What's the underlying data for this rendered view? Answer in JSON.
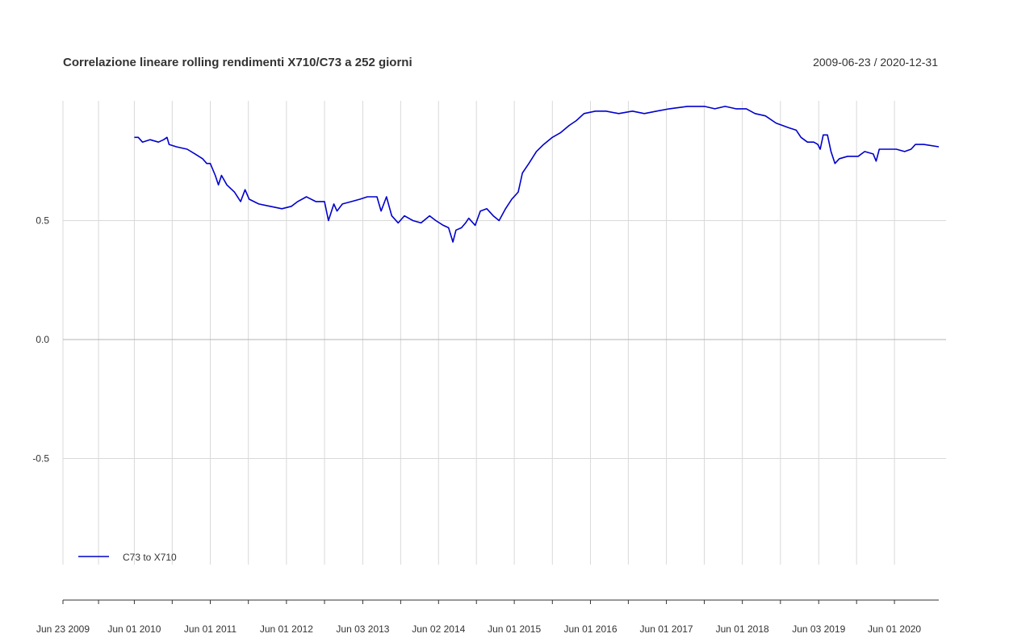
{
  "chart_data": {
    "type": "line",
    "title": "Correlazione lineare rolling rendimenti X710/C73 a 252 giorni",
    "date_range": "2009-06-23 / 2020-12-31",
    "xlabel": "",
    "ylabel": "",
    "xlim": [
      "2009-06-23",
      "2020-12-31"
    ],
    "ylim": [
      -1,
      1
    ],
    "y_ticks": [
      {
        "value": 0.5,
        "label": "0.5"
      },
      {
        "value": 0.0,
        "label": "0.0"
      },
      {
        "value": -0.5,
        "label": "-0.5"
      }
    ],
    "x_ticks": [
      {
        "date": "2009-06-23",
        "label": "Jun 23 2009"
      },
      {
        "date": "2010-06-01",
        "label": "Jun 01 2010"
      },
      {
        "date": "2011-06-01",
        "label": "Jun 01 2011"
      },
      {
        "date": "2012-06-01",
        "label": "Jun 01 2012"
      },
      {
        "date": "2013-06-03",
        "label": "Jun 03 2013"
      },
      {
        "date": "2014-06-02",
        "label": "Jun 02 2014"
      },
      {
        "date": "2015-06-01",
        "label": "Jun 01 2015"
      },
      {
        "date": "2016-06-01",
        "label": "Jun 01 2016"
      },
      {
        "date": "2017-06-01",
        "label": "Jun 01 2017"
      },
      {
        "date": "2018-06-01",
        "label": "Jun 01 2018"
      },
      {
        "date": "2019-06-03",
        "label": "Jun 03 2019"
      },
      {
        "date": "2020-06-01",
        "label": "Jun 01 2020"
      }
    ],
    "grid": true,
    "legend_position": "bottom-left",
    "series": [
      {
        "name": "C73 to X710",
        "color": "#0000cc",
        "points": [
          [
            "2010-06-01",
            0.85
          ],
          [
            "2010-06-20",
            0.85
          ],
          [
            "2010-07-10",
            0.83
          ],
          [
            "2010-08-15",
            0.84
          ],
          [
            "2010-09-25",
            0.83
          ],
          [
            "2010-10-20",
            0.84
          ],
          [
            "2010-11-05",
            0.85
          ],
          [
            "2010-11-15",
            0.82
          ],
          [
            "2010-12-20",
            0.81
          ],
          [
            "2011-02-10",
            0.8
          ],
          [
            "2011-03-20",
            0.78
          ],
          [
            "2011-04-25",
            0.76
          ],
          [
            "2011-05-15",
            0.74
          ],
          [
            "2011-06-01",
            0.74
          ],
          [
            "2011-06-25",
            0.69
          ],
          [
            "2011-07-10",
            0.65
          ],
          [
            "2011-07-25",
            0.69
          ],
          [
            "2011-08-20",
            0.65
          ],
          [
            "2011-09-25",
            0.62
          ],
          [
            "2011-10-25",
            0.58
          ],
          [
            "2011-11-15",
            0.63
          ],
          [
            "2011-12-05",
            0.59
          ],
          [
            "2012-01-20",
            0.57
          ],
          [
            "2012-03-15",
            0.56
          ],
          [
            "2012-05-10",
            0.55
          ],
          [
            "2012-06-25",
            0.56
          ],
          [
            "2012-07-25",
            0.58
          ],
          [
            "2012-09-05",
            0.6
          ],
          [
            "2012-10-20",
            0.58
          ],
          [
            "2012-12-01",
            0.58
          ],
          [
            "2012-12-20",
            0.5
          ],
          [
            "2013-01-15",
            0.57
          ],
          [
            "2013-01-30",
            0.54
          ],
          [
            "2013-02-25",
            0.57
          ],
          [
            "2013-04-10",
            0.58
          ],
          [
            "2013-05-20",
            0.59
          ],
          [
            "2013-06-25",
            0.6
          ],
          [
            "2013-08-10",
            0.6
          ],
          [
            "2013-08-30",
            0.54
          ],
          [
            "2013-09-25",
            0.6
          ],
          [
            "2013-10-20",
            0.52
          ],
          [
            "2013-11-20",
            0.49
          ],
          [
            "2013-12-20",
            0.52
          ],
          [
            "2014-01-30",
            0.5
          ],
          [
            "2014-03-10",
            0.49
          ],
          [
            "2014-04-20",
            0.52
          ],
          [
            "2014-05-20",
            0.5
          ],
          [
            "2014-06-25",
            0.48
          ],
          [
            "2014-07-20",
            0.47
          ],
          [
            "2014-08-10",
            0.41
          ],
          [
            "2014-08-25",
            0.46
          ],
          [
            "2014-09-20",
            0.47
          ],
          [
            "2014-10-10",
            0.49
          ],
          [
            "2014-10-25",
            0.51
          ],
          [
            "2014-11-25",
            0.48
          ],
          [
            "2014-12-20",
            0.54
          ],
          [
            "2015-01-20",
            0.55
          ],
          [
            "2015-02-20",
            0.52
          ],
          [
            "2015-03-20",
            0.5
          ],
          [
            "2015-04-20",
            0.55
          ],
          [
            "2015-05-20",
            0.59
          ],
          [
            "2015-06-20",
            0.62
          ],
          [
            "2015-07-10",
            0.7
          ],
          [
            "2015-08-10",
            0.74
          ],
          [
            "2015-09-15",
            0.79
          ],
          [
            "2015-10-20",
            0.82
          ],
          [
            "2015-12-01",
            0.85
          ],
          [
            "2016-01-10",
            0.87
          ],
          [
            "2016-02-20",
            0.9
          ],
          [
            "2016-03-25",
            0.92
          ],
          [
            "2016-05-01",
            0.95
          ],
          [
            "2016-06-25",
            0.96
          ],
          [
            "2016-08-15",
            0.96
          ],
          [
            "2016-10-15",
            0.95
          ],
          [
            "2016-12-20",
            0.96
          ],
          [
            "2017-02-15",
            0.95
          ],
          [
            "2017-04-15",
            0.96
          ],
          [
            "2017-06-15",
            0.97
          ],
          [
            "2017-09-10",
            0.98
          ],
          [
            "2017-12-01",
            0.98
          ],
          [
            "2018-01-20",
            0.97
          ],
          [
            "2018-03-10",
            0.98
          ],
          [
            "2018-05-01",
            0.97
          ],
          [
            "2018-06-20",
            0.97
          ],
          [
            "2018-08-01",
            0.95
          ],
          [
            "2018-09-20",
            0.94
          ],
          [
            "2018-11-10",
            0.91
          ],
          [
            "2019-01-10",
            0.89
          ],
          [
            "2019-02-15",
            0.88
          ],
          [
            "2019-03-10",
            0.85
          ],
          [
            "2019-04-10",
            0.83
          ],
          [
            "2019-05-10",
            0.83
          ],
          [
            "2019-05-30",
            0.82
          ],
          [
            "2019-06-10",
            0.8
          ],
          [
            "2019-06-25",
            0.86
          ],
          [
            "2019-07-15",
            0.86
          ],
          [
            "2019-08-01",
            0.79
          ],
          [
            "2019-08-20",
            0.74
          ],
          [
            "2019-09-10",
            0.76
          ],
          [
            "2019-10-20",
            0.77
          ],
          [
            "2019-12-10",
            0.77
          ],
          [
            "2020-01-10",
            0.79
          ],
          [
            "2020-02-20",
            0.78
          ],
          [
            "2020-03-05",
            0.75
          ],
          [
            "2020-03-20",
            0.8
          ],
          [
            "2020-04-20",
            0.8
          ],
          [
            "2020-06-10",
            0.8
          ],
          [
            "2020-07-20",
            0.79
          ],
          [
            "2020-08-20",
            0.8
          ],
          [
            "2020-09-10",
            0.82
          ],
          [
            "2020-10-20",
            0.82
          ],
          [
            "2020-12-31",
            0.81
          ]
        ]
      }
    ]
  }
}
